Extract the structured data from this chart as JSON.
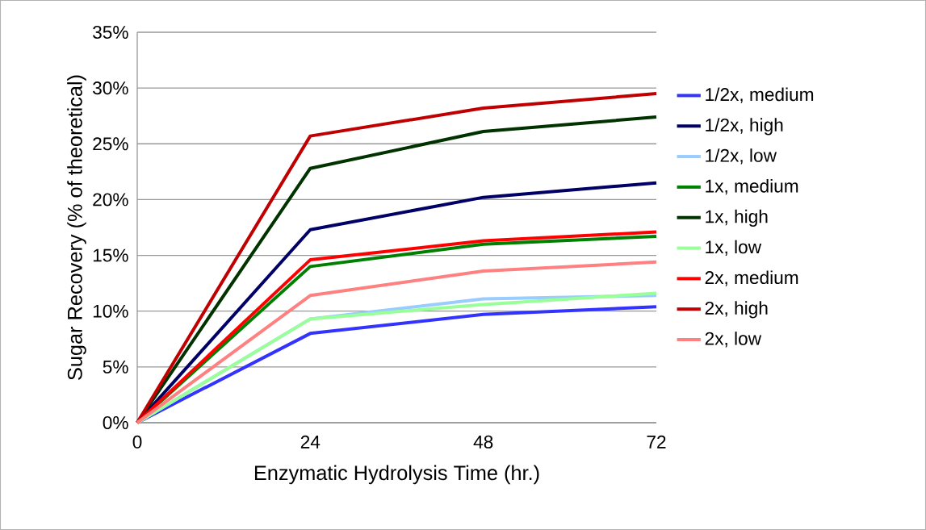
{
  "chart_data": {
    "type": "line",
    "xlabel": "Enzymatic Hydrolysis Time (hr.)",
    "ylabel": "Sugar Recovery (% of theoretical)",
    "x": [
      0,
      24,
      48,
      72
    ],
    "xlim": [
      0,
      72
    ],
    "xticks": [
      0,
      24,
      48,
      72
    ],
    "ylim": [
      0,
      35
    ],
    "yticks": [
      {
        "value": 0,
        "label": "0%"
      },
      {
        "value": 5,
        "label": "5%"
      },
      {
        "value": 10,
        "label": "10%"
      },
      {
        "value": 15,
        "label": "15%"
      },
      {
        "value": 20,
        "label": "20%"
      },
      {
        "value": 25,
        "label": "25%"
      },
      {
        "value": 30,
        "label": "30%"
      },
      {
        "value": 35,
        "label": "35%"
      }
    ],
    "grid": "y",
    "legend": "right",
    "series": [
      {
        "name": "1/2x, medium",
        "color": "#3333ff",
        "values": [
          0,
          8.0,
          9.7,
          10.4
        ]
      },
      {
        "name": "1/2x, high",
        "color": "#000066",
        "values": [
          0,
          17.3,
          20.2,
          21.5
        ]
      },
      {
        "name": "1/2x, low",
        "color": "#99ccff",
        "values": [
          0,
          9.3,
          11.1,
          11.4
        ]
      },
      {
        "name": "1x, medium",
        "color": "#008000",
        "values": [
          0,
          14.0,
          16.0,
          16.7
        ]
      },
      {
        "name": "1x, high",
        "color": "#003300",
        "values": [
          0,
          22.8,
          26.1,
          27.4
        ]
      },
      {
        "name": "1x, low",
        "color": "#99ff99",
        "values": [
          0,
          9.3,
          10.6,
          11.6
        ]
      },
      {
        "name": "2x, medium",
        "color": "#ff0000",
        "values": [
          0,
          14.6,
          16.3,
          17.1
        ]
      },
      {
        "name": "2x, high",
        "color": "#c00000",
        "values": [
          0,
          25.7,
          28.2,
          29.5
        ]
      },
      {
        "name": "2x, low",
        "color": "#ff8080",
        "values": [
          0,
          11.4,
          13.6,
          14.4
        ]
      }
    ]
  }
}
